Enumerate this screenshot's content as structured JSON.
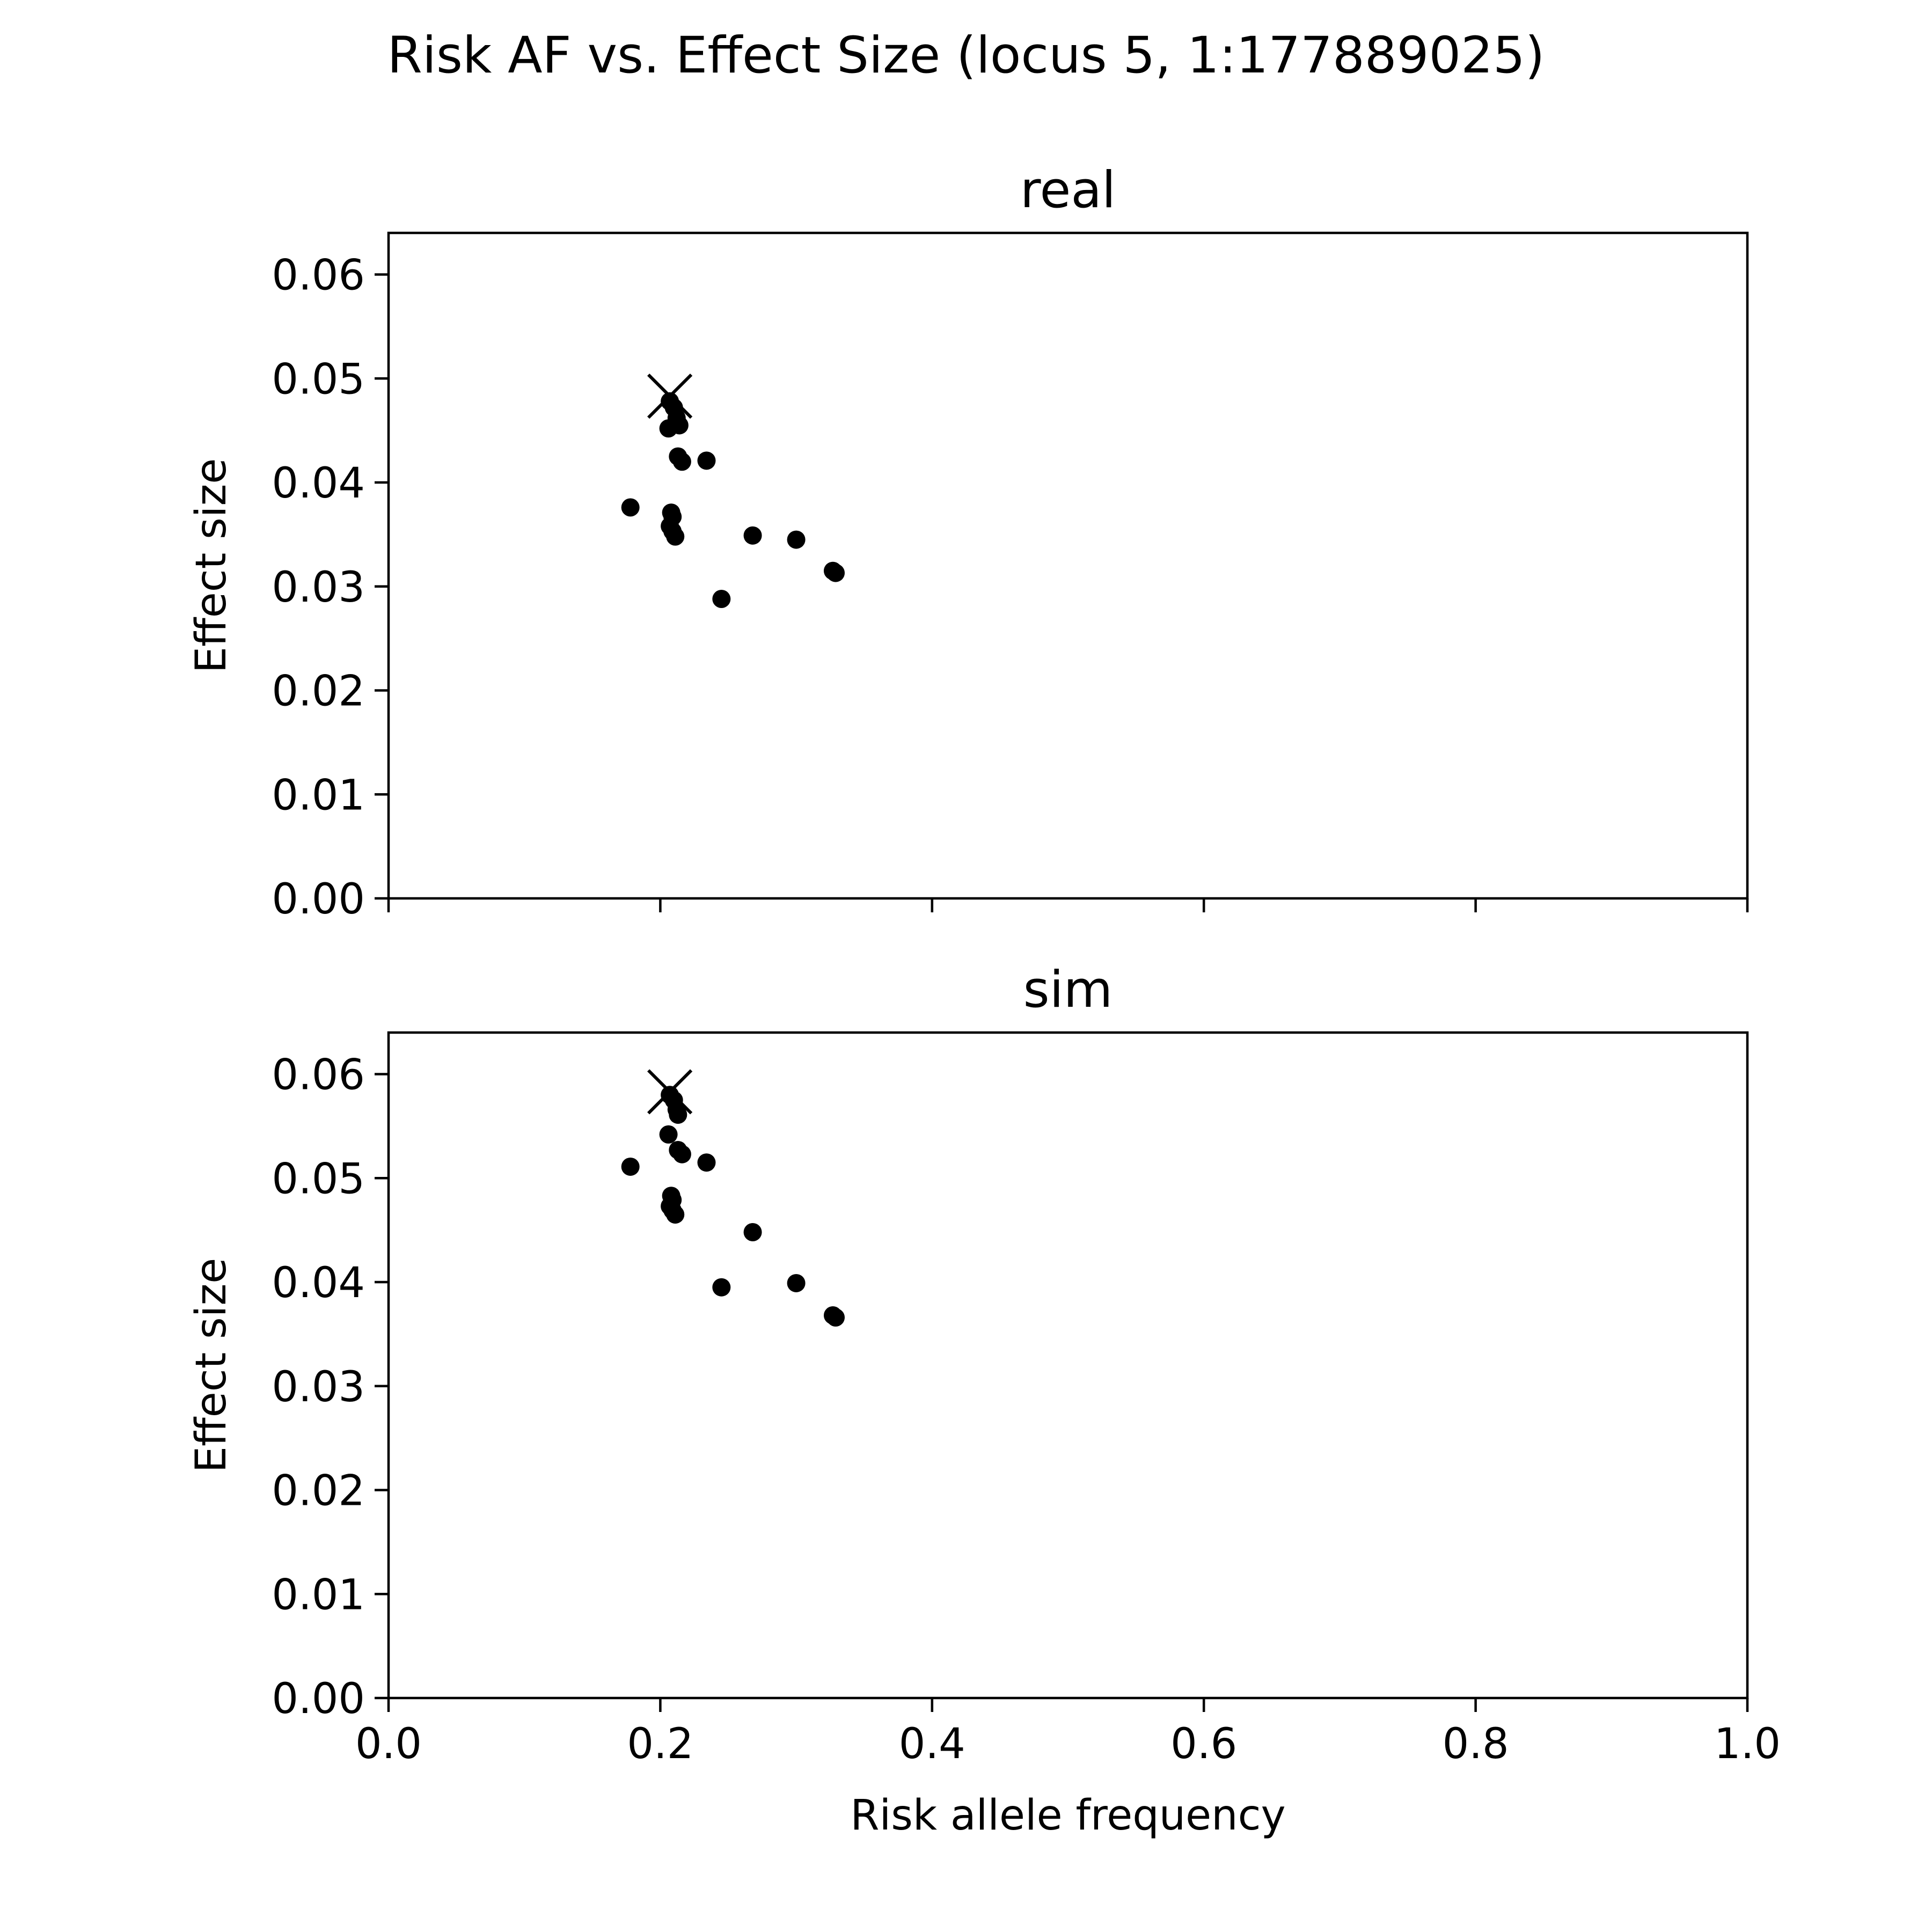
{
  "figure": {
    "suptitle": "Risk AF vs. Effect Size (locus 5, 1:177889025)"
  },
  "chart_data": [
    {
      "type": "scatter",
      "title": "real",
      "xlabel": "",
      "ylabel": "Effect size",
      "xlim": [
        0.0,
        1.0
      ],
      "ylim": [
        0.0,
        0.064
      ],
      "xticks": [
        0.0,
        0.2,
        0.4,
        0.6,
        0.8,
        1.0
      ],
      "xtick_labels_shown": false,
      "yticks": [
        0.0,
        0.01,
        0.02,
        0.03,
        0.04,
        0.05,
        0.06
      ],
      "ytick_labels": [
        "0.00",
        "0.01",
        "0.02",
        "0.03",
        "0.04",
        "0.05",
        "0.06"
      ],
      "grid": false,
      "points": [
        {
          "x": 0.207,
          "y": 0.0478
        },
        {
          "x": 0.21,
          "y": 0.0472
        },
        {
          "x": 0.212,
          "y": 0.0462
        },
        {
          "x": 0.214,
          "y": 0.0455
        },
        {
          "x": 0.206,
          "y": 0.0452
        },
        {
          "x": 0.213,
          "y": 0.0425
        },
        {
          "x": 0.216,
          "y": 0.042
        },
        {
          "x": 0.234,
          "y": 0.0421
        },
        {
          "x": 0.178,
          "y": 0.0376
        },
        {
          "x": 0.208,
          "y": 0.0371
        },
        {
          "x": 0.209,
          "y": 0.0367
        },
        {
          "x": 0.207,
          "y": 0.0358
        },
        {
          "x": 0.209,
          "y": 0.0353
        },
        {
          "x": 0.211,
          "y": 0.0348
        },
        {
          "x": 0.268,
          "y": 0.0349
        },
        {
          "x": 0.3,
          "y": 0.0345
        },
        {
          "x": 0.327,
          "y": 0.0315
        },
        {
          "x": 0.329,
          "y": 0.0313
        },
        {
          "x": 0.245,
          "y": 0.0288
        }
      ],
      "highlight": {
        "x": 0.207,
        "y": 0.0483,
        "marker": "x"
      },
      "color": "#000000"
    },
    {
      "type": "scatter",
      "title": "sim",
      "xlabel": "Risk allele frequency",
      "ylabel": "Effect size",
      "xlim": [
        0.0,
        1.0
      ],
      "ylim": [
        0.0,
        0.064
      ],
      "xticks": [
        0.0,
        0.2,
        0.4,
        0.6,
        0.8,
        1.0
      ],
      "xtick_labels": [
        "0.0",
        "0.2",
        "0.4",
        "0.6",
        "0.8",
        "1.0"
      ],
      "xtick_labels_shown": true,
      "yticks": [
        0.0,
        0.01,
        0.02,
        0.03,
        0.04,
        0.05,
        0.06
      ],
      "ytick_labels": [
        "0.00",
        "0.01",
        "0.02",
        "0.03",
        "0.04",
        "0.05",
        "0.06"
      ],
      "grid": false,
      "points": [
        {
          "x": 0.207,
          "y": 0.058
        },
        {
          "x": 0.21,
          "y": 0.0575
        },
        {
          "x": 0.212,
          "y": 0.0566
        },
        {
          "x": 0.213,
          "y": 0.0561
        },
        {
          "x": 0.206,
          "y": 0.0542
        },
        {
          "x": 0.213,
          "y": 0.0527
        },
        {
          "x": 0.216,
          "y": 0.0523
        },
        {
          "x": 0.234,
          "y": 0.0515
        },
        {
          "x": 0.178,
          "y": 0.0511
        },
        {
          "x": 0.208,
          "y": 0.0483
        },
        {
          "x": 0.209,
          "y": 0.0479
        },
        {
          "x": 0.207,
          "y": 0.0473
        },
        {
          "x": 0.209,
          "y": 0.0469
        },
        {
          "x": 0.211,
          "y": 0.0465
        },
        {
          "x": 0.268,
          "y": 0.0448
        },
        {
          "x": 0.3,
          "y": 0.0399
        },
        {
          "x": 0.245,
          "y": 0.0395
        },
        {
          "x": 0.327,
          "y": 0.0368
        },
        {
          "x": 0.329,
          "y": 0.0366
        }
      ],
      "highlight": {
        "x": 0.207,
        "y": 0.0583,
        "marker": "x"
      },
      "color": "#000000"
    }
  ]
}
